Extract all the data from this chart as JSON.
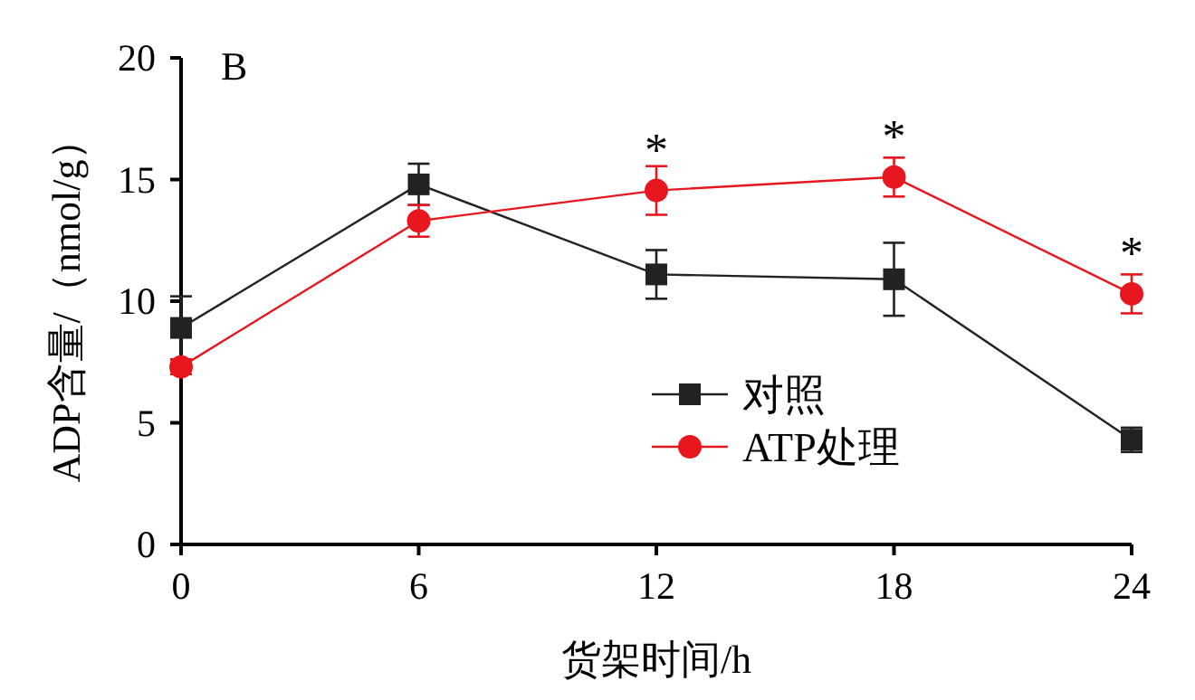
{
  "chart_data": {
    "type": "line",
    "xlabel": "货架时间/h",
    "ylabel": "ADP含量/（nmol/g）",
    "x": [
      0,
      6,
      12,
      18,
      24
    ],
    "xlim": [
      0,
      24
    ],
    "xticks": [
      0,
      6,
      12,
      18,
      24
    ],
    "ylim": [
      0,
      20
    ],
    "yticks": [
      0,
      5,
      10,
      15,
      20
    ],
    "legend": "right",
    "line_style": "solid",
    "series": [
      {
        "name": "对照",
        "color": "#222222",
        "marker": "square",
        "values": [
          8.9,
          14.8,
          11.1,
          10.9,
          4.3
        ],
        "errors": [
          1.3,
          0.85,
          1.0,
          1.5,
          0.5
        ]
      },
      {
        "name": "ATP处理",
        "color": "#e8161e",
        "marker": "circle",
        "values": [
          7.3,
          13.3,
          14.55,
          15.1,
          10.3
        ],
        "errors": [
          0.3,
          0.65,
          1.0,
          0.8,
          0.8
        ]
      }
    ],
    "annotations": [
      "B",
      {
        "text": "*",
        "x": 12,
        "y": 14.55
      },
      {
        "text": "*",
        "x": 18,
        "y": 15.1
      },
      {
        "text": "*",
        "x": 24,
        "y": 10.3
      }
    ]
  }
}
